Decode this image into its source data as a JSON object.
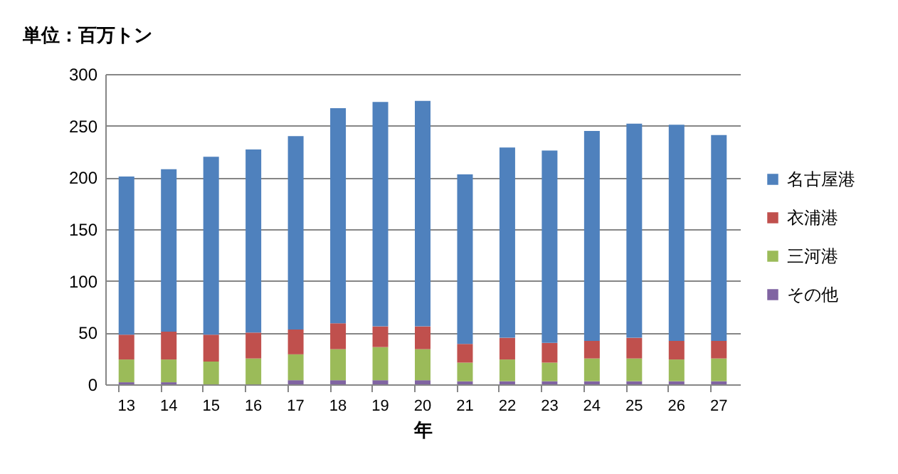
{
  "chart_data": {
    "type": "bar",
    "title": "単位：百万トン",
    "xlabel": "年",
    "categories": [
      "13",
      "14",
      "15",
      "16",
      "17",
      "18",
      "19",
      "20",
      "21",
      "22",
      "23",
      "24",
      "25",
      "26",
      "27"
    ],
    "stacked": true,
    "series": [
      {
        "name": "その他",
        "color": "#8064a2",
        "values": [
          2,
          2,
          0,
          0,
          4,
          4,
          4,
          4,
          3,
          3,
          3,
          3,
          3,
          3,
          3
        ]
      },
      {
        "name": "三河港",
        "color": "#9bbb59",
        "values": [
          22,
          22,
          22,
          25,
          25,
          30,
          32,
          30,
          18,
          21,
          18,
          22,
          22,
          21,
          22
        ]
      },
      {
        "name": "衣浦港",
        "color": "#c0504d",
        "values": [
          24,
          27,
          26,
          25,
          24,
          25,
          20,
          22,
          18,
          21,
          19,
          17,
          20,
          18,
          17
        ]
      },
      {
        "name": "名古屋港",
        "color": "#4f81bd",
        "values": [
          153,
          157,
          172,
          177,
          187,
          208,
          217,
          218,
          164,
          184,
          186,
          203,
          207,
          209,
          199
        ]
      }
    ],
    "ylim": [
      0,
      300
    ],
    "yticks": [
      0,
      50,
      100,
      150,
      200,
      250,
      300
    ],
    "grid": "y",
    "legend": "right"
  }
}
